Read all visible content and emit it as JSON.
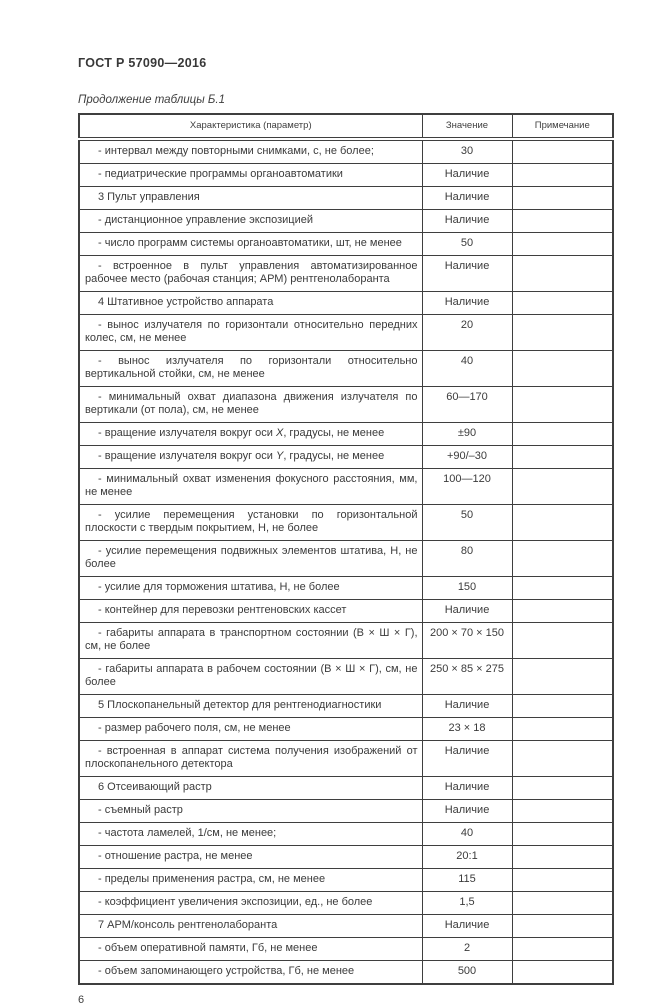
{
  "page": {
    "standard_code": "ГОСТ Р 57090—2016",
    "table_caption": "Продолжение таблицы Б.1",
    "page_number": "6"
  },
  "colors": {
    "text": "#3b3b3b",
    "border": "#3f3f3f",
    "background": "#ffffff"
  },
  "table": {
    "headers": [
      "Характеристика (параметр)",
      "Значение",
      "Примечание"
    ],
    "rows": [
      {
        "characteristic": "- интервал между повторными снимками, с, не более;",
        "value": "30",
        "note": ""
      },
      {
        "characteristic": "- педиатрические программы органоавтоматики",
        "value": "Наличие",
        "note": ""
      },
      {
        "characteristic": "3  Пульт управления",
        "value": "Наличие",
        "note": ""
      },
      {
        "characteristic": "- дистанционное управление экспозицией",
        "value": "Наличие",
        "note": ""
      },
      {
        "characteristic": "- число программ системы органоавтоматики, шт, не менее",
        "value": "50",
        "note": ""
      },
      {
        "characteristic": "- встроенное в пульт управления автоматизированное рабочее ме­сто (рабочая станция; АРМ) рентгенолаборанта",
        "value": "Наличие",
        "note": ""
      },
      {
        "characteristic": "4  Штативное устройство аппарата",
        "value": "Наличие",
        "note": ""
      },
      {
        "characteristic": "- вынос излучателя по горизонтали относительно передних колес, см, не менее",
        "value": "20",
        "note": ""
      },
      {
        "characteristic": "- вынос излучателя по горизонтали относительно вертикальной стойки, см, не менее",
        "value": "40",
        "note": ""
      },
      {
        "characteristic": "- минимальный охват диапазона движения излучателя по вертикали (от пола), см, не менее",
        "value": "60—170",
        "note": ""
      },
      {
        "characteristic": "- вращение излучателя вокруг оси _X_, градусы, не менее",
        "value": "±90",
        "note": ""
      },
      {
        "characteristic": "- вращение излучателя вокруг оси _Y_, градусы, не менее",
        "value": "+90/–30",
        "note": ""
      },
      {
        "characteristic": "- минимальный охват изменения фокусного расстояния, мм, не менее",
        "value": "100—120",
        "note": ""
      },
      {
        "characteristic": "- усилие перемещения установки по горизонтальной плоскости с твердым покрытием, Н, не более",
        "value": "50",
        "note": ""
      },
      {
        "characteristic": "- усилие перемещения подвижных элементов штатива, Н, не более",
        "value": "80",
        "note": ""
      },
      {
        "characteristic": "- усилие для торможения штатива, Н, не более",
        "value": "150",
        "note": ""
      },
      {
        "characteristic": "- контейнер для перевозки рентгеновских кассет",
        "value": "Наличие",
        "note": ""
      },
      {
        "characteristic": "- габариты аппарата в транспортном состоянии (В × Ш × Г), см, не более",
        "value": "200 × 70 × 150",
        "note": ""
      },
      {
        "characteristic": "- габариты аппарата в рабочем состоянии (В × Ш × Г), см, не более",
        "value": "250 × 85 × 275",
        "note": ""
      },
      {
        "characteristic": "5  Плоскопанельный детектор для рентгенодиагностики",
        "value": "Наличие",
        "note": ""
      },
      {
        "characteristic": "- размер рабочего поля, см, не менее",
        "value": "23 × 18",
        "note": ""
      },
      {
        "characteristic": "- встроенная в аппарат система получения изображений от плоско­панельного детектора",
        "value": "Наличие",
        "note": ""
      },
      {
        "characteristic": "6  Отсеивающий растр",
        "value": "Наличие",
        "note": ""
      },
      {
        "characteristic": "- съемный растр",
        "value": "Наличие",
        "note": ""
      },
      {
        "characteristic": "- частота ламелей, 1/см, не менее;",
        "value": "40",
        "note": ""
      },
      {
        "characteristic": "- отношение растра, не менее",
        "value": "20:1",
        "note": ""
      },
      {
        "characteristic": "- пределы применения растра, см, не менее",
        "value": "115",
        "note": ""
      },
      {
        "characteristic": "- коэффициент увеличения экспозиции, ед., не более",
        "value": "1,5",
        "note": ""
      },
      {
        "characteristic": "7  АРМ/консоль рентгенолаборанта",
        "value": "Наличие",
        "note": ""
      },
      {
        "characteristic": "- объем оперативной памяти, Гб, не менее",
        "value": "2",
        "note": ""
      },
      {
        "characteristic": "- объем запоминающего устройства, Гб, не менее",
        "value": "500",
        "note": ""
      }
    ]
  }
}
